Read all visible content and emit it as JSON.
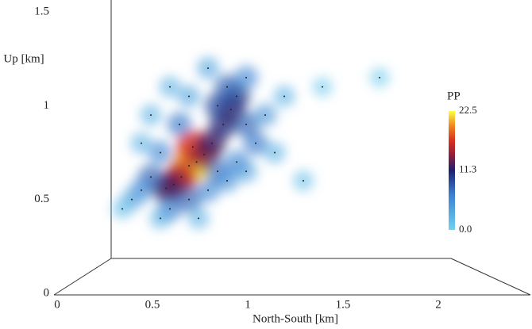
{
  "chart_data": {
    "type": "scatter",
    "xlabel": "North-South [km]",
    "ylabel": "Up [km]",
    "xlim": [
      0,
      2.5
    ],
    "ylim": [
      0,
      1.5
    ],
    "xticks": [
      0,
      0.5,
      1,
      1.5,
      2
    ],
    "yticks": [
      0,
      0.5,
      1,
      1.5
    ],
    "x": [
      0.7,
      0.74,
      0.72,
      0.66,
      0.62,
      0.58,
      0.78,
      0.82,
      0.88,
      0.92,
      0.95,
      0.9,
      0.85,
      1.0,
      1.05,
      1.1,
      1.0,
      0.7,
      0.6,
      0.65,
      0.55,
      0.5,
      0.45,
      0.4,
      0.35,
      0.6,
      0.7,
      0.8,
      0.9,
      1.0,
      1.15,
      1.2,
      0.8,
      0.5,
      0.95,
      0.85,
      0.55,
      0.75,
      1.3,
      1.4,
      1.7,
      0.45
    ],
    "values": [
      0.68,
      0.7,
      0.78,
      0.62,
      0.58,
      0.56,
      0.74,
      0.8,
      0.9,
      0.98,
      1.05,
      1.1,
      1.0,
      0.9,
      0.8,
      0.95,
      1.15,
      1.05,
      1.1,
      0.9,
      0.75,
      0.62,
      0.55,
      0.5,
      0.45,
      0.45,
      0.5,
      0.55,
      0.6,
      0.65,
      0.75,
      1.05,
      1.2,
      0.95,
      0.7,
      0.65,
      0.4,
      0.4,
      0.6,
      1.1,
      1.15,
      0.8
    ],
    "color_values": [
      20,
      22,
      17,
      16,
      14,
      12,
      14,
      12,
      11,
      12,
      10,
      8,
      9,
      8,
      7,
      5,
      6,
      4,
      3,
      7,
      6,
      8,
      6,
      4,
      2,
      7,
      8,
      6,
      5,
      4,
      3,
      3,
      4,
      3,
      6,
      7,
      3,
      3,
      2,
      1,
      1,
      3
    ],
    "colorbar_title": "PP",
    "clim": [
      0,
      22.5
    ],
    "colorbar_ticks": [
      {
        "value": 0,
        "label": "0.0"
      },
      11.3,
      22.5
    ]
  }
}
